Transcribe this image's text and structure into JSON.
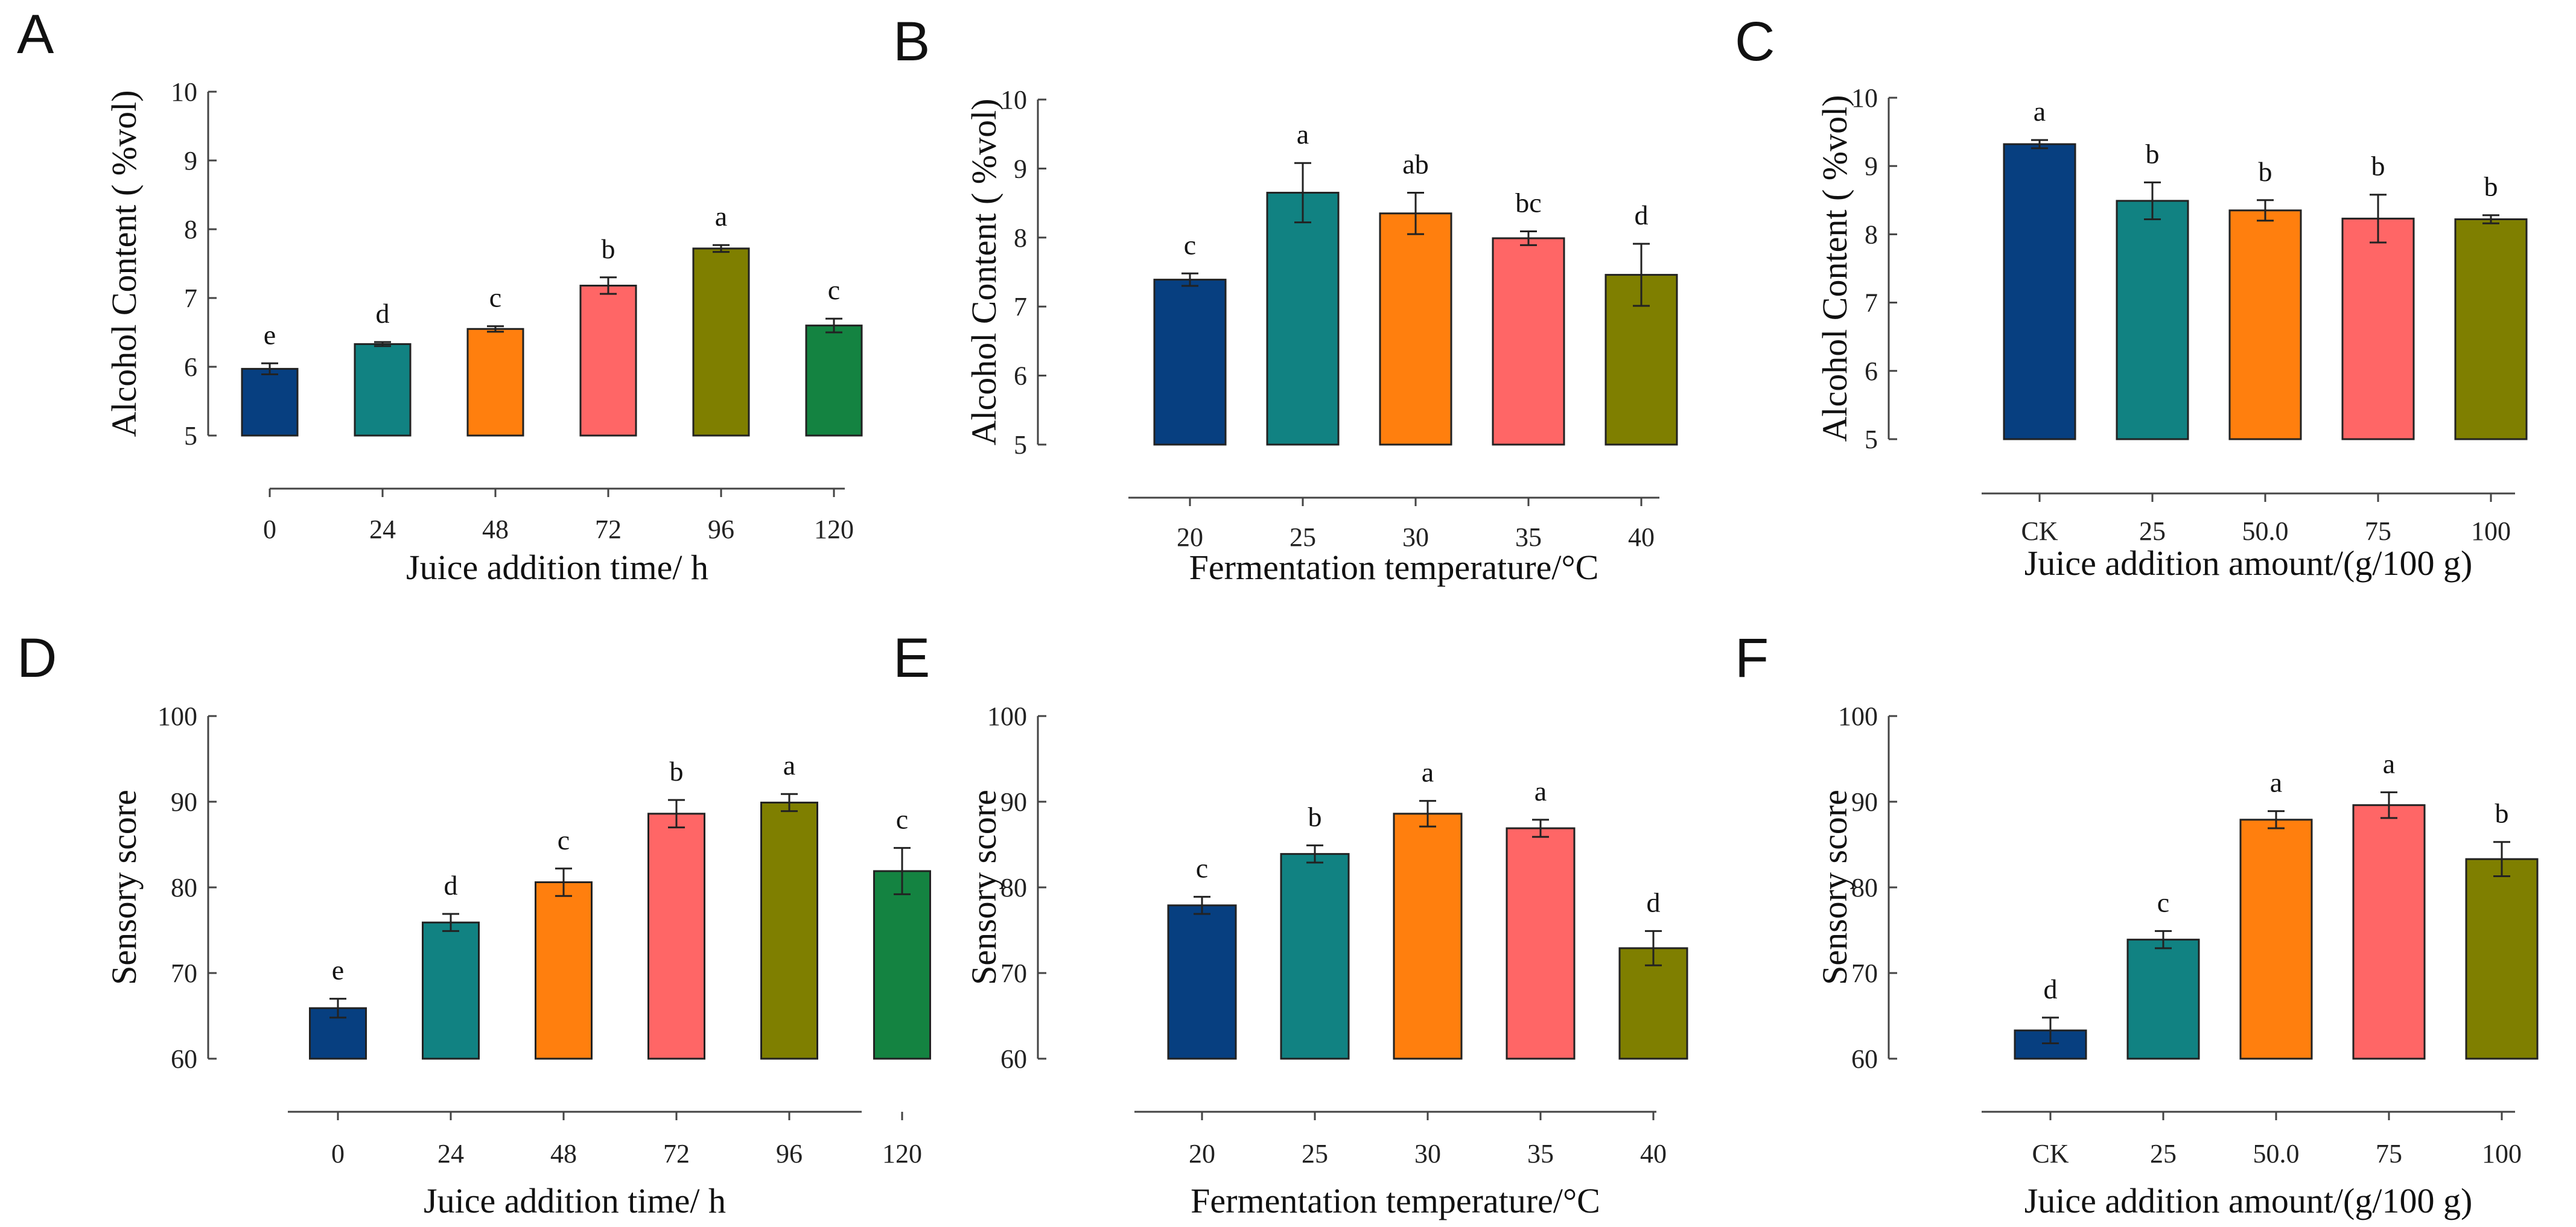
{
  "colors": {
    "navy": "#073f80",
    "teal": "#118282",
    "orange": "#ff7f0e",
    "salmon": "#ff6666",
    "olive": "#7f7f00",
    "green": "#148341"
  },
  "chart_data": [
    {
      "panel": "A",
      "type": "bar",
      "categories": [
        "0",
        "24",
        "48",
        "72",
        "96",
        "120"
      ],
      "values": [
        5.97,
        6.33,
        6.55,
        7.18,
        7.72,
        6.6
      ],
      "errors": [
        0.08,
        0.03,
        0.04,
        0.12,
        0.05,
        0.1
      ],
      "significance": [
        "e",
        "d",
        "c",
        "b",
        "a",
        "c"
      ],
      "bar_colors": [
        "navy",
        "teal",
        "orange",
        "salmon",
        "olive",
        "green"
      ],
      "xlabel": "Juice addition time/ h",
      "ylabel": "Alcohol Content ( %vol)",
      "ylim": [
        5,
        10
      ],
      "yticks": [
        5,
        6,
        7,
        8,
        9,
        10
      ]
    },
    {
      "panel": "B",
      "type": "bar",
      "categories": [
        "20",
        "25",
        "30",
        "35",
        "40"
      ],
      "values": [
        7.39,
        8.65,
        8.35,
        7.99,
        7.46
      ],
      "errors": [
        0.09,
        0.43,
        0.3,
        0.1,
        0.45
      ],
      "significance": [
        "c",
        "a",
        "ab",
        "bc",
        "d"
      ],
      "bar_colors": [
        "navy",
        "teal",
        "orange",
        "salmon",
        "olive"
      ],
      "xlabel": "Fermentation temperature/°C",
      "ylabel": "Alcohol Content ( %vol)",
      "ylim": [
        5,
        10
      ],
      "yticks": [
        5,
        6,
        7,
        8,
        9,
        10
      ]
    },
    {
      "panel": "C",
      "type": "bar",
      "categories": [
        "CK",
        "25",
        "50.0",
        "75",
        "100"
      ],
      "values": [
        9.32,
        8.49,
        8.35,
        8.23,
        8.22
      ],
      "errors": [
        0.06,
        0.27,
        0.15,
        0.35,
        0.06
      ],
      "significance": [
        "a",
        "b",
        "b",
        "b",
        "b"
      ],
      "bar_colors": [
        "navy",
        "teal",
        "orange",
        "salmon",
        "olive"
      ],
      "xlabel": "Juice addition amount/(g/100 g)",
      "ylabel": "Alcohol Content ( %vol)",
      "ylim": [
        5,
        10
      ],
      "yticks": [
        5,
        6,
        7,
        8,
        9,
        10
      ]
    },
    {
      "panel": "D",
      "type": "bar",
      "categories": [
        "0",
        "24",
        "48",
        "72",
        "96",
        "120"
      ],
      "values": [
        65.9,
        75.9,
        80.6,
        88.6,
        89.9,
        81.9
      ],
      "errors": [
        1.1,
        1.0,
        1.6,
        1.6,
        1.0,
        2.7
      ],
      "significance": [
        "e",
        "d",
        "c",
        "b",
        "a",
        "c"
      ],
      "bar_colors": [
        "navy",
        "teal",
        "orange",
        "salmon",
        "olive",
        "green"
      ],
      "xlabel": "Juice addition time/ h",
      "ylabel": "Sensory score",
      "ylim": [
        60,
        100
      ],
      "yticks": [
        60,
        70,
        80,
        90,
        100
      ]
    },
    {
      "panel": "E",
      "type": "bar",
      "categories": [
        "20",
        "25",
        "30",
        "35",
        "40"
      ],
      "values": [
        77.9,
        83.9,
        88.6,
        86.9,
        72.9
      ],
      "errors": [
        1.0,
        1.0,
        1.5,
        1.0,
        2.0
      ],
      "significance": [
        "c",
        "b",
        "a",
        "a",
        "d"
      ],
      "bar_colors": [
        "navy",
        "teal",
        "orange",
        "salmon",
        "olive"
      ],
      "xlabel": "Fermentation temperature/°C",
      "ylabel": "Sensory score",
      "ylim": [
        60,
        100
      ],
      "yticks": [
        60,
        70,
        80,
        90,
        100
      ]
    },
    {
      "panel": "F",
      "type": "bar",
      "categories": [
        "CK",
        "25",
        "50.0",
        "75",
        "100"
      ],
      "values": [
        63.3,
        73.9,
        87.9,
        89.6,
        83.3
      ],
      "errors": [
        1.5,
        1.0,
        1.0,
        1.5,
        2.0
      ],
      "significance": [
        "d",
        "c",
        "a",
        "a",
        "b"
      ],
      "bar_colors": [
        "navy",
        "teal",
        "orange",
        "salmon",
        "olive"
      ],
      "xlabel": "Juice addition amount/(g/100 g)",
      "ylabel": "Sensory score",
      "ylim": [
        60,
        100
      ],
      "yticks": [
        60,
        70,
        80,
        90,
        100
      ]
    }
  ]
}
